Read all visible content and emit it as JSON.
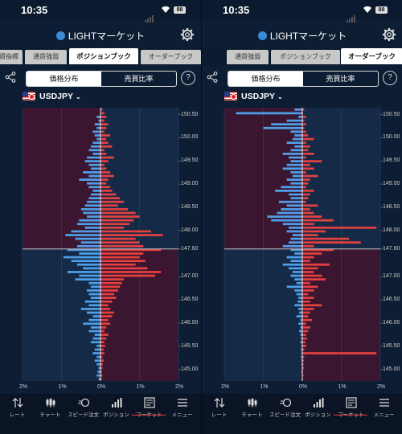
{
  "status": {
    "time": "10:35",
    "battery": "88"
  },
  "app": {
    "title": "LIGHTマーケット"
  },
  "panels": [
    {
      "id": "left",
      "tabs": [
        "資指標",
        "通貨強弱",
        "ポジションブック",
        "オーダーブック"
      ],
      "active_tab": 2,
      "segment": {
        "options": [
          "価格分布",
          "売買比率"
        ],
        "selected": "価格分布"
      },
      "help": "?",
      "pair": "USDJPY",
      "y_ticks": [
        "150.50",
        "150.00",
        "149.50",
        "149.00",
        "148.50",
        "148.00",
        "147.60",
        "147.00",
        "146.50",
        "146.00",
        "145.50",
        "145.00"
      ],
      "x_ticks": [
        "2%",
        "1%",
        "0%",
        "1%",
        "2%"
      ],
      "current_price": "147.60",
      "chart_data": {
        "type": "bar",
        "title": "",
        "xlabel": "",
        "ylabel": "",
        "ylim": [
          144.75,
          150.65
        ],
        "current_price": 147.6,
        "long_pct": [
          0,
          0,
          0.1,
          0.05,
          0.15,
          0.1,
          0.2,
          0.15,
          0.1,
          0.2,
          0.25,
          0.3,
          0.2,
          0.35,
          0.4,
          0.3,
          0.25,
          0.45,
          0.3,
          0.55,
          0.35,
          0.3,
          0.2,
          0.25,
          0.3,
          0.35,
          0.4,
          0.5,
          0.45,
          0.35,
          0.55,
          0.6,
          0.4,
          0.75,
          0.9,
          0.65,
          0.5,
          0.6,
          0.85,
          0.55,
          0.95,
          0.75,
          0.6,
          0.45,
          0.85,
          0.55,
          0.65,
          0.3,
          0.25,
          0.35,
          0.3,
          0.25,
          0.4,
          0.3,
          0.5,
          0.35,
          0.2,
          0.3,
          0.45,
          0.25,
          0.3,
          0.15,
          0.2,
          0.25,
          0.1,
          0.15,
          0.2,
          0.1,
          0.15,
          0.1,
          0.05,
          0.08,
          0.1,
          0.05
        ],
        "short_pct": [
          0.05,
          0.1,
          0.15,
          0.1,
          0.2,
          0.15,
          0.1,
          0.25,
          0.15,
          0.2,
          0.3,
          0.1,
          0.15,
          0.35,
          0.2,
          0.1,
          0.15,
          0.25,
          0.35,
          0.2,
          0.15,
          0.25,
          0.3,
          0.4,
          0.5,
          0.6,
          0.45,
          0.7,
          0.9,
          1.0,
          0.85,
          0.75,
          0.6,
          1.3,
          1.6,
          0.9,
          1.0,
          1.1,
          1.55,
          1.1,
          1.0,
          1.15,
          0.9,
          1.2,
          1.55,
          1.4,
          0.6,
          0.55,
          0.5,
          0.45,
          0.35,
          0.4,
          0.3,
          0.2,
          0.25,
          0.35,
          0.3,
          0.2,
          0.25,
          0.15,
          0.1,
          0.2,
          0.15,
          0.1,
          0.12,
          0.08,
          0.1,
          0.05,
          0.08,
          0.06,
          0.05,
          0.04,
          0.05,
          0.03
        ]
      }
    },
    {
      "id": "right",
      "tabs": [
        "通貨強弱",
        "ポジションブック",
        "オーダーブック"
      ],
      "active_tab": 2,
      "segment": {
        "options": [
          "価格分布",
          "売買比率"
        ],
        "selected": "価格分布"
      },
      "help": "?",
      "pair": "USDJPY",
      "y_ticks": [
        "150.50",
        "150.00",
        "149.50",
        "149.00",
        "148.50",
        "148.00",
        "147.60",
        "147.00",
        "146.50",
        "146.00",
        "145.50",
        "145.00"
      ],
      "x_ticks": [
        "2%",
        "1%",
        "0%",
        "1%",
        "2%"
      ],
      "current_price": "147.60",
      "chart_data": {
        "type": "bar",
        "title": "",
        "xlabel": "",
        "ylabel": "",
        "ylim": [
          144.75,
          150.65
        ],
        "current_price": 147.6,
        "buy_pct": [
          0.2,
          1.7,
          0.1,
          0.4,
          0.8,
          1.0,
          0.3,
          0.2,
          0.25,
          0.4,
          0.2,
          0.3,
          0.5,
          0.35,
          0.3,
          0.4,
          0.5,
          0.3,
          0.25,
          0.4,
          0.3,
          0.55,
          0.7,
          0.35,
          0.3,
          0.6,
          0.4,
          0.55,
          0.65,
          0.9,
          0.8,
          0.5,
          0.35,
          0.4,
          0.25,
          0.3,
          0.35,
          0.5,
          0.3,
          0.2,
          0.4,
          0.3,
          0.5,
          0.35,
          0.25,
          0.3,
          0.2,
          0.15,
          0.4,
          0.2,
          0.15,
          0.1,
          0.12,
          0.2,
          0.1,
          0.08,
          0.15,
          0.05,
          0.1,
          0.05,
          0.08,
          0.05,
          0.03,
          0.05,
          0.02,
          0.03,
          0.02,
          0.03,
          0.02,
          0.02,
          0.01,
          0.02,
          0.01,
          0.01
        ],
        "sell_pct": [
          0.05,
          0.02,
          0.1,
          0.05,
          0.1,
          0.05,
          0.1,
          0.15,
          0.3,
          0.1,
          0.2,
          0.15,
          0.3,
          0.1,
          0.5,
          0.2,
          0.3,
          0.1,
          0.4,
          0.2,
          0.15,
          0.1,
          0.3,
          0.2,
          0.15,
          0.1,
          0.4,
          0.2,
          0.3,
          0.5,
          0.8,
          0.3,
          1.9,
          0.6,
          0.4,
          1.2,
          1.5,
          0.3,
          0.8,
          0.5,
          0.3,
          0.2,
          0.7,
          0.4,
          0.3,
          0.5,
          0.6,
          0.2,
          0.4,
          0.3,
          0.15,
          0.3,
          0.2,
          0.5,
          0.3,
          0.2,
          0.15,
          0.25,
          0.1,
          0.2,
          0.15,
          0.1,
          0.12,
          0.08,
          0.1,
          0.05,
          1.9,
          0.05,
          0.04,
          0.03,
          0.04,
          0.02,
          0.03,
          0.02
        ]
      }
    }
  ],
  "nav": [
    "レート",
    "チャート",
    "スピード注文",
    "ポジション",
    "マーケット",
    "メニュー"
  ],
  "colors": {
    "blue": "#4f9ee8",
    "red": "#e34040",
    "bg_upper_left": "#3a1630",
    "bg_upper_right": "#142a46",
    "bg_lower_left": "#142a46",
    "bg_lower_right": "#3a1630"
  }
}
